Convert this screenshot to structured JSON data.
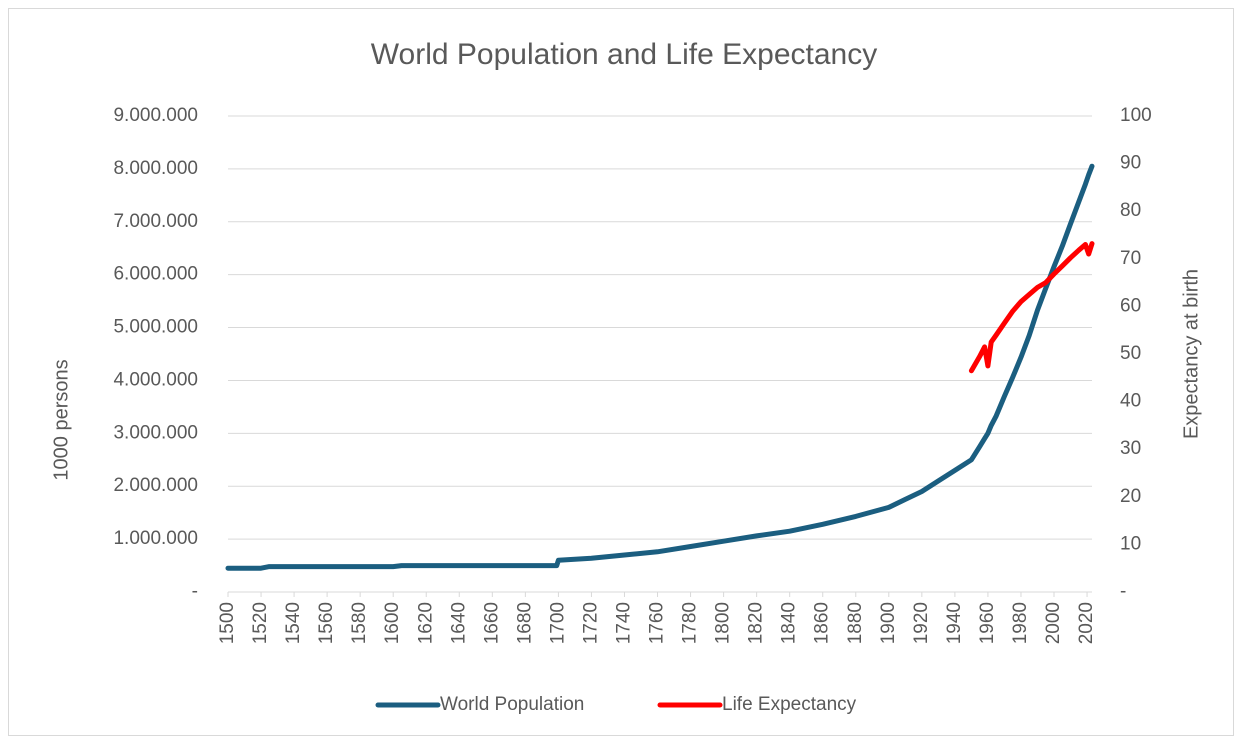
{
  "chart_data": {
    "type": "line",
    "title": "World Population and Life Expectancy",
    "y_label": "1000 persons",
    "y2_label": "Expectancy at birth",
    "x": [
      1500,
      1520,
      1525,
      1600,
      1605,
      1699,
      1700,
      1720,
      1740,
      1760,
      1780,
      1800,
      1820,
      1840,
      1860,
      1880,
      1900,
      1910,
      1920,
      1930,
      1940,
      1950,
      1955,
      1958,
      1960,
      1962,
      1965,
      1970,
      1975,
      1980,
      1985,
      1990,
      1995,
      2000,
      2005,
      2010,
      2015,
      2019,
      2021,
      2023
    ],
    "series": [
      {
        "name": "World Population",
        "color": "#1b5e80",
        "values": [
          450000,
          450000,
          480000,
          480000,
          500000,
          500000,
          600000,
          640000,
          700000,
          760000,
          860000,
          960000,
          1060000,
          1150000,
          1280000,
          1430000,
          1600000,
          1750000,
          1900000,
          2100000,
          2300000,
          2500000,
          2750000,
          2900000,
          3000000,
          3150000,
          3330000,
          3700000,
          4060000,
          4440000,
          4850000,
          5330000,
          5740000,
          6150000,
          6540000,
          6960000,
          7380000,
          7710000,
          7890000,
          8050000
        ]
      },
      {
        "name": "Life Expectancy",
        "color": "#ff0000",
        "axis": "y2",
        "values": [
          null,
          null,
          null,
          null,
          null,
          null,
          null,
          null,
          null,
          null,
          null,
          null,
          null,
          null,
          null,
          null,
          null,
          null,
          null,
          null,
          null,
          46.5,
          49.5,
          51.5,
          47.5,
          52.5,
          54,
          56.5,
          59,
          61,
          62.5,
          64,
          65,
          66.8,
          68.5,
          70.2,
          71.8,
          73,
          71,
          73.2
        ]
      }
    ],
    "xlim": [
      1500,
      2023
    ],
    "xticks": [
      1500,
      1520,
      1540,
      1560,
      1580,
      1600,
      1620,
      1640,
      1660,
      1680,
      1700,
      1720,
      1740,
      1760,
      1780,
      1800,
      1820,
      1840,
      1860,
      1880,
      1900,
      1920,
      1940,
      1960,
      1980,
      2000,
      2020
    ],
    "ylim": [
      0,
      9000000
    ],
    "yticks": [
      {
        "value": 0,
        "label": "-"
      },
      {
        "value": 1000000,
        "label": "1.000.000"
      },
      {
        "value": 2000000,
        "label": "2.000.000"
      },
      {
        "value": 3000000,
        "label": "3.000.000"
      },
      {
        "value": 4000000,
        "label": "4.000.000"
      },
      {
        "value": 5000000,
        "label": "5.000.000"
      },
      {
        "value": 6000000,
        "label": "6.000.000"
      },
      {
        "value": 7000000,
        "label": "7.000.000"
      },
      {
        "value": 8000000,
        "label": "8.000.000"
      },
      {
        "value": 9000000,
        "label": "9.000.000"
      }
    ],
    "y2lim": [
      0,
      100
    ],
    "y2ticks": [
      {
        "value": 0,
        "label": "-"
      },
      10,
      20,
      30,
      40,
      50,
      60,
      70,
      80,
      90,
      100
    ],
    "grid": true,
    "legend": "bottom"
  }
}
